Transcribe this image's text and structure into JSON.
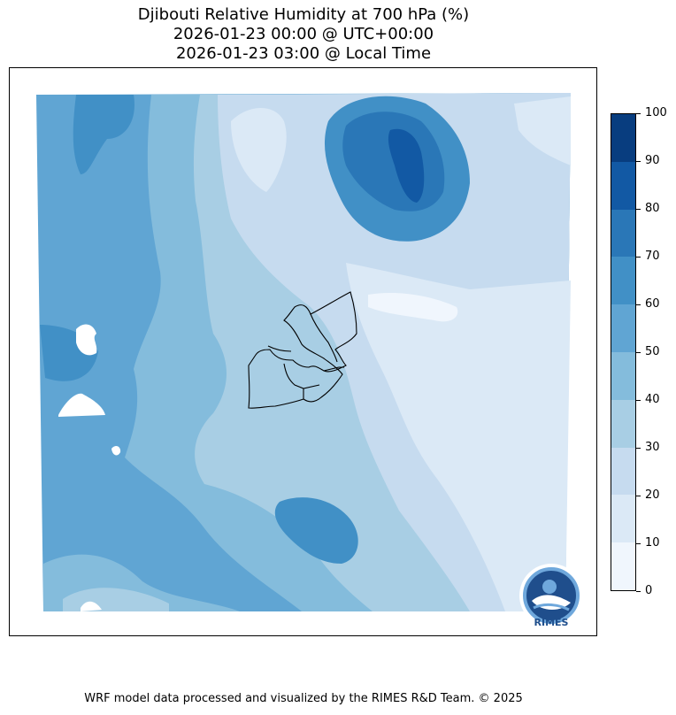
{
  "title": {
    "line1": "Djibouti Relative Humidity at 700 hPa (%)",
    "line2": "2026-01-23 00:00 @ UTC+00:00",
    "line3": "2026-01-23 03:00 @ Local Time"
  },
  "colorbar": {
    "ticks": [
      "0",
      "10",
      "20",
      "30",
      "40",
      "50",
      "60",
      "70",
      "80",
      "90",
      "100"
    ],
    "colors": [
      "#f0f6fd",
      "#dbe9f6",
      "#c6dbef",
      "#a8cee4",
      "#84bcdc",
      "#60a5d3",
      "#4190c6",
      "#2a77b7",
      "#1259a4",
      "#083d7f"
    ]
  },
  "logo": {
    "text": "RIMES"
  },
  "footer": "WRF model data processed and visualized by the RIMES R&D Team. © 2025"
}
